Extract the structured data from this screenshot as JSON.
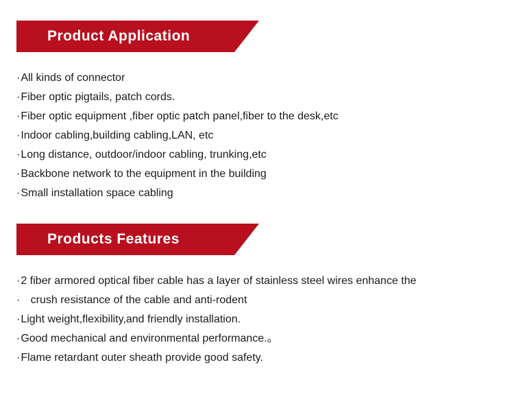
{
  "sections": [
    {
      "title": "Product Application",
      "items": [
        "All kinds of connector",
        "Fiber optic pigtails, patch cords.",
        "Fiber optic equipment ,fiber optic patch panel,fiber to the desk,etc",
        "Indoor cabling,building cabling,LAN, etc",
        "Long distance, outdoor/indoor cabling, trunking,etc",
        "Backbone network to the equipment in the building",
        "Small installation space cabling"
      ]
    },
    {
      "title": "Products Features",
      "items": [
        "2 fiber armored optical fiber cable has a layer of stainless steel wires enhance the",
        "crush resistance of the cable and anti-rodent",
        "Light weight,flexibility,and friendly installation.",
        "Good mechanical and environmental performance.。",
        "Flame retardant outer sheath provide good safety."
      ],
      "continuation": [
        false,
        true,
        false,
        false,
        false
      ]
    }
  ],
  "header_background": "#b8101e",
  "header_text_color": "#ffffff",
  "body_text_color": "#1a1a1a",
  "background_color": "#ffffff",
  "header_fontsize": 21,
  "item_fontsize": 16
}
